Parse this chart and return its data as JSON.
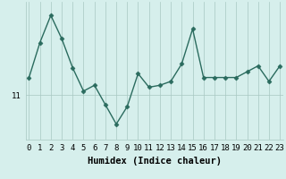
{
  "x": [
    0,
    1,
    2,
    3,
    4,
    5,
    6,
    7,
    8,
    9,
    10,
    11,
    12,
    13,
    14,
    15,
    16,
    17,
    18,
    19,
    20,
    21,
    22,
    23
  ],
  "y": [
    11.45,
    12.35,
    13.05,
    12.45,
    11.7,
    11.1,
    11.25,
    10.75,
    10.25,
    10.7,
    11.55,
    11.2,
    11.25,
    11.35,
    11.8,
    12.7,
    11.45,
    11.45,
    11.45,
    11.45,
    11.6,
    11.75,
    11.35,
    11.75
  ],
  "line_color": "#2a6b5e",
  "marker": "D",
  "markersize": 2.5,
  "linewidth": 1.0,
  "bg_color": "#d6efec",
  "grid_color": "#a8c8c2",
  "ytick_label": "11",
  "ytick_value": 11.0,
  "xlabel": "Humidex (Indice chaleur)",
  "xlim": [
    -0.3,
    23.3
  ],
  "ylim": [
    9.85,
    13.4
  ],
  "xlabel_fontsize": 7.5,
  "tick_fontsize": 6.5
}
